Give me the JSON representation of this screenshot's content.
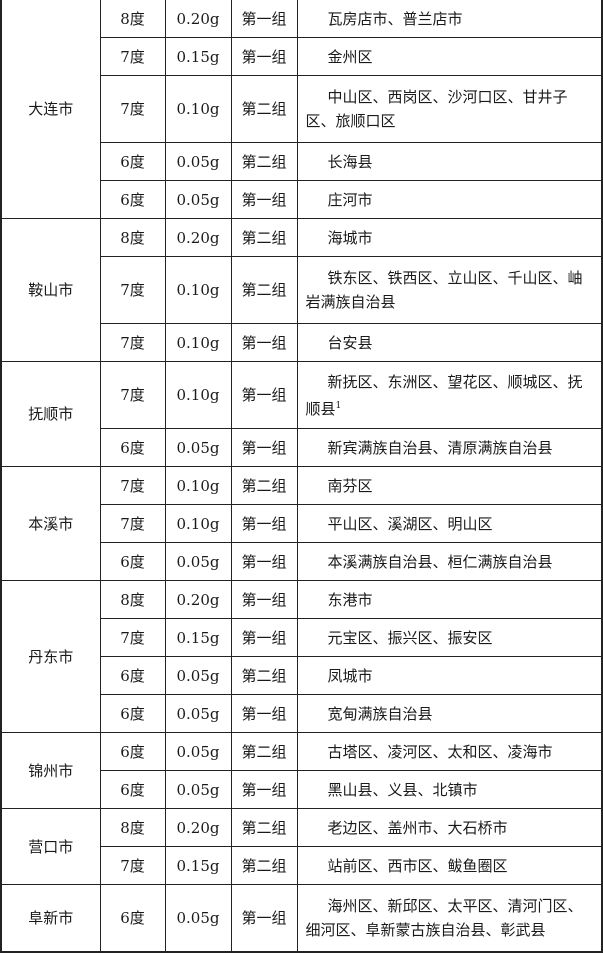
{
  "groups": [
    {
      "city": "大连市",
      "rows": [
        {
          "intensity": "8度",
          "accel": "0.20g",
          "group": "第一组",
          "areas": "瓦房店市、普兰店市"
        },
        {
          "intensity": "7度",
          "accel": "0.15g",
          "group": "第一组",
          "areas": "金州区"
        },
        {
          "intensity": "7度",
          "accel": "0.10g",
          "group": "第二组",
          "areas": "中山区、西岗区、沙河口区、甘井子区、旅顺口区"
        },
        {
          "intensity": "6度",
          "accel": "0.05g",
          "group": "第二组",
          "areas": "长海县"
        },
        {
          "intensity": "6度",
          "accel": "0.05g",
          "group": "第一组",
          "areas": "庄河市"
        }
      ]
    },
    {
      "city": "鞍山市",
      "rows": [
        {
          "intensity": "8度",
          "accel": "0.20g",
          "group": "第二组",
          "areas": "海城市"
        },
        {
          "intensity": "7度",
          "accel": "0.10g",
          "group": "第二组",
          "areas": "铁东区、铁西区、立山区、千山区、岫岩满族自治县"
        },
        {
          "intensity": "7度",
          "accel": "0.10g",
          "group": "第一组",
          "areas": "台安县"
        }
      ]
    },
    {
      "city": "抚顺市",
      "rows": [
        {
          "intensity": "7度",
          "accel": "0.10g",
          "group": "第一组",
          "areas": "新抚区、东洲区、望花区、顺城区、抚顺县",
          "note": "1"
        },
        {
          "intensity": "6度",
          "accel": "0.05g",
          "group": "第一组",
          "areas": "新宾满族自治县、清原满族自治县"
        }
      ]
    },
    {
      "city": "本溪市",
      "rows": [
        {
          "intensity": "7度",
          "accel": "0.10g",
          "group": "第二组",
          "areas": "南芬区"
        },
        {
          "intensity": "7度",
          "accel": "0.10g",
          "group": "第一组",
          "areas": "平山区、溪湖区、明山区"
        },
        {
          "intensity": "6度",
          "accel": "0.05g",
          "group": "第一组",
          "areas": "本溪满族自治县、桓仁满族自治县"
        }
      ]
    },
    {
      "city": "丹东市",
      "rows": [
        {
          "intensity": "8度",
          "accel": "0.20g",
          "group": "第一组",
          "areas": "东港市"
        },
        {
          "intensity": "7度",
          "accel": "0.15g",
          "group": "第一组",
          "areas": "元宝区、振兴区、振安区"
        },
        {
          "intensity": "6度",
          "accel": "0.05g",
          "group": "第二组",
          "areas": "凤城市"
        },
        {
          "intensity": "6度",
          "accel": "0.05g",
          "group": "第一组",
          "areas": "宽甸满族自治县"
        }
      ]
    },
    {
      "city": "锦州市",
      "rows": [
        {
          "intensity": "6度",
          "accel": "0.05g",
          "group": "第二组",
          "areas": "古塔区、凌河区、太和区、凌海市"
        },
        {
          "intensity": "6度",
          "accel": "0.05g",
          "group": "第一组",
          "areas": "黑山县、义县、北镇市"
        }
      ]
    },
    {
      "city": "营口市",
      "rows": [
        {
          "intensity": "8度",
          "accel": "0.20g",
          "group": "第二组",
          "areas": "老边区、盖州市、大石桥市"
        },
        {
          "intensity": "7度",
          "accel": "0.15g",
          "group": "第二组",
          "areas": "站前区、西市区、鲅鱼圈区"
        }
      ]
    },
    {
      "city": "阜新市",
      "rows": [
        {
          "intensity": "6度",
          "accel": "0.05g",
          "group": "第一组",
          "areas": "海州区、新邱区、太平区、清河门区、细河区、阜新蒙古族自治县、彰武县"
        }
      ]
    }
  ]
}
